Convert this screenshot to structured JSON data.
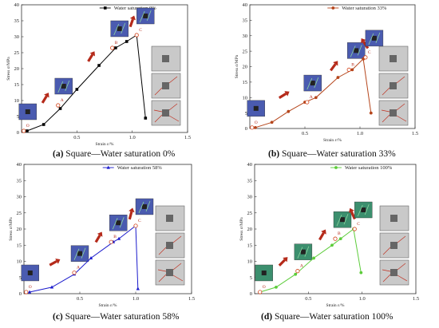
{
  "chart_data": [
    {
      "id": "a",
      "type": "line",
      "color": "#000000",
      "marker": "square",
      "legend": "Water saturation 0%",
      "caption_letter": "(a)",
      "caption_text": " Square—Water saturation 0%",
      "ylabel": "Stress σ/MPa",
      "xlabel": "Strain ε/%",
      "xlim": [
        0,
        1.5
      ],
      "ylim": [
        0,
        40
      ],
      "xticks": [
        0.5,
        1.0,
        1.5
      ],
      "yticks": [
        0,
        5,
        10,
        15,
        20,
        25,
        30,
        35,
        40
      ],
      "x": [
        0.05,
        0.2,
        0.35,
        0.5,
        0.7,
        0.85,
        0.95,
        1.04,
        1.12
      ],
      "y": [
        0.5,
        2.5,
        7.5,
        13.5,
        21,
        26.5,
        28.5,
        30.5,
        4.5
      ],
      "stage_labels": [
        "O",
        "A",
        "B",
        "C"
      ],
      "stage_points": [
        [
          0.02,
          0.5
        ],
        [
          0.33,
          8.5
        ],
        [
          0.82,
          26.5
        ],
        [
          1.04,
          30.5
        ]
      ]
    },
    {
      "id": "b",
      "type": "line",
      "color": "#b5451b",
      "marker": "circle",
      "legend": "Water saturation 33%",
      "caption_letter": "(b)",
      "caption_text": " Square—Water saturation 33%",
      "ylabel": "Stress σ/MPa",
      "xlabel": "Strain ε/%",
      "xlim": [
        0,
        1.5
      ],
      "ylim": [
        0,
        40
      ],
      "xticks": [
        0.5,
        1.0,
        1.5
      ],
      "yticks": [
        0,
        5,
        10,
        15,
        20,
        25,
        30,
        35,
        40
      ],
      "x": [
        0.05,
        0.2,
        0.35,
        0.5,
        0.6,
        0.8,
        0.93,
        1.03,
        1.1
      ],
      "y": [
        0.3,
        2,
        5.5,
        8.5,
        10,
        16.5,
        19,
        22.5,
        5
      ],
      "stage_labels": [
        "O",
        "A",
        "B",
        "C"
      ],
      "stage_points": [
        [
          0.02,
          0.3
        ],
        [
          0.52,
          8.5
        ],
        [
          0.9,
          19
        ],
        [
          1.05,
          23
        ]
      ]
    },
    {
      "id": "c",
      "type": "line",
      "color": "#1a1acc",
      "marker": "triangle",
      "legend": "Water saturation 58%",
      "caption_letter": "(c)",
      "caption_text": " Square—Water saturation 58%",
      "ylabel": "Stress σ/MPa",
      "xlabel": "Strain ε/%",
      "xlim": [
        0,
        1.5
      ],
      "ylim": [
        0,
        40
      ],
      "xticks": [
        0.5,
        1.0,
        1.5
      ],
      "yticks": [
        0,
        5,
        10,
        15,
        20,
        25,
        30,
        35,
        40
      ],
      "x": [
        0.05,
        0.25,
        0.45,
        0.6,
        0.8,
        0.85,
        1.0,
        1.02
      ],
      "y": [
        0.5,
        2,
        6,
        11,
        16,
        17,
        21,
        1.5
      ],
      "stage_labels": [
        "O",
        "A",
        "B",
        "C"
      ],
      "stage_points": [
        [
          0.02,
          0.5
        ],
        [
          0.45,
          6.5
        ],
        [
          0.78,
          16
        ],
        [
          1.0,
          21
        ]
      ]
    },
    {
      "id": "d",
      "type": "line",
      "color": "#5ccc3a",
      "marker": "circle",
      "legend": "Water saturation 100%",
      "caption_letter": "(d)",
      "caption_text": " Square—Water saturation 100%",
      "ylabel": "Stress σ/MPa",
      "xlabel": "Strain ε/%",
      "xlim": [
        0,
        1.5
      ],
      "ylim": [
        0,
        40
      ],
      "xticks": [
        0.5,
        1.0,
        1.5
      ],
      "yticks": [
        0,
        5,
        10,
        15,
        20,
        25,
        30,
        35,
        40
      ],
      "x": [
        0.05,
        0.2,
        0.38,
        0.55,
        0.72,
        0.8,
        0.92,
        0.99
      ],
      "y": [
        0.5,
        2,
        6,
        11,
        15,
        17,
        20,
        6.5
      ],
      "stage_labels": [
        "O",
        "A",
        "B",
        "C"
      ],
      "stage_points": [
        [
          0.05,
          0.5
        ],
        [
          0.4,
          7
        ],
        [
          0.75,
          17
        ],
        [
          0.93,
          20
        ]
      ]
    }
  ],
  "colors": {
    "arrow": "#b52a1a",
    "specimen_bg": "#4a5bb0",
    "specimen_bg_d": "#3c8f6e",
    "photo_bg": "#c9c9c9",
    "crack": "#c03020"
  }
}
